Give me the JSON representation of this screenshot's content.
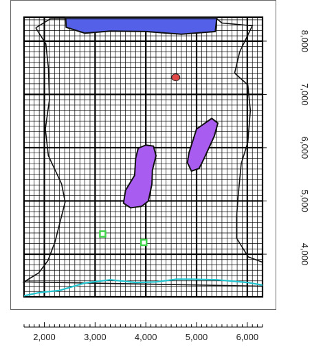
{
  "x_axis": {
    "min": 1600,
    "max": 6300,
    "major_ticks": [
      2000,
      3000,
      4000,
      5000,
      6000
    ],
    "labels": [
      "2,000",
      "3,000",
      "4,000",
      "5,000",
      "6,000"
    ],
    "minor_step": 100
  },
  "y_axis": {
    "min": 3200,
    "max": 8450,
    "major_ticks": [
      4000,
      5000,
      6000,
      7000,
      8000
    ],
    "labels": [
      "4,000",
      "5,000",
      "6,000",
      "7,000",
      "8,000"
    ],
    "minor_step": 100
  },
  "colors": {
    "grid": "#000000",
    "boundary": "#111111",
    "top_body": "#5560e8",
    "purple_body": "#a95cf0",
    "red_marker": "#e04848",
    "green_marker": "#3fd24a",
    "cyan_line": "#20c4cf"
  },
  "features": {
    "top_body": [
      [
        2420,
        8450
      ],
      [
        5400,
        8450
      ],
      [
        5370,
        8180
      ],
      [
        4700,
        8130
      ],
      [
        4000,
        8180
      ],
      [
        3300,
        8190
      ],
      [
        2800,
        8150
      ],
      [
        2430,
        8260
      ]
    ],
    "purple_left": [
      [
        3800,
        5800
      ],
      [
        3850,
        5990
      ],
      [
        4000,
        6050
      ],
      [
        4150,
        6030
      ],
      [
        4200,
        5850
      ],
      [
        4130,
        5580
      ],
      [
        4120,
        5320
      ],
      [
        4050,
        5000
      ],
      [
        3920,
        4900
      ],
      [
        3700,
        4870
      ],
      [
        3560,
        4960
      ],
      [
        3600,
        5200
      ],
      [
        3780,
        5480
      ]
    ],
    "purple_right": [
      [
        4850,
        5900
      ],
      [
        5000,
        6350
      ],
      [
        5300,
        6550
      ],
      [
        5420,
        6460
      ],
      [
        5350,
        6220
      ],
      [
        5150,
        5800
      ],
      [
        5050,
        5610
      ],
      [
        4900,
        5560
      ],
      [
        4820,
        5720
      ]
    ],
    "red_marker": [
      4590,
      7320
    ],
    "green_markers": [
      [
        3150,
        4380
      ],
      [
        3960,
        4220
      ]
    ],
    "boundary": [
      [
        1830,
        8250
      ],
      [
        2120,
        8420
      ],
      [
        5400,
        8420
      ],
      [
        5500,
        8340
      ],
      [
        6100,
        8290
      ],
      [
        5850,
        7800
      ],
      [
        5750,
        7400
      ],
      [
        6010,
        7180
      ],
      [
        6060,
        6700
      ],
      [
        6010,
        6100
      ],
      [
        5880,
        5700
      ],
      [
        5820,
        5100
      ],
      [
        5790,
        4700
      ],
      [
        5790,
        4300
      ],
      [
        6020,
        3950
      ],
      [
        6300,
        3850
      ],
      [
        6300,
        3400
      ],
      [
        1600,
        3480
      ],
      [
        1890,
        3650
      ],
      [
        2070,
        3880
      ],
      [
        2210,
        4230
      ],
      [
        2410,
        4980
      ],
      [
        2340,
        5320
      ],
      [
        2080,
        5850
      ],
      [
        2020,
        6350
      ],
      [
        2100,
        6900
      ],
      [
        2080,
        7500
      ],
      [
        2030,
        7950
      ],
      [
        1830,
        8250
      ]
    ],
    "cyan_line": [
      [
        1600,
        3220
      ],
      [
        1900,
        3280
      ],
      [
        2300,
        3320
      ],
      [
        2800,
        3460
      ],
      [
        3300,
        3520
      ],
      [
        3800,
        3470
      ],
      [
        4200,
        3480
      ],
      [
        4600,
        3530
      ],
      [
        4900,
        3530
      ],
      [
        5400,
        3520
      ],
      [
        6000,
        3470
      ],
      [
        6300,
        3420
      ]
    ]
  }
}
